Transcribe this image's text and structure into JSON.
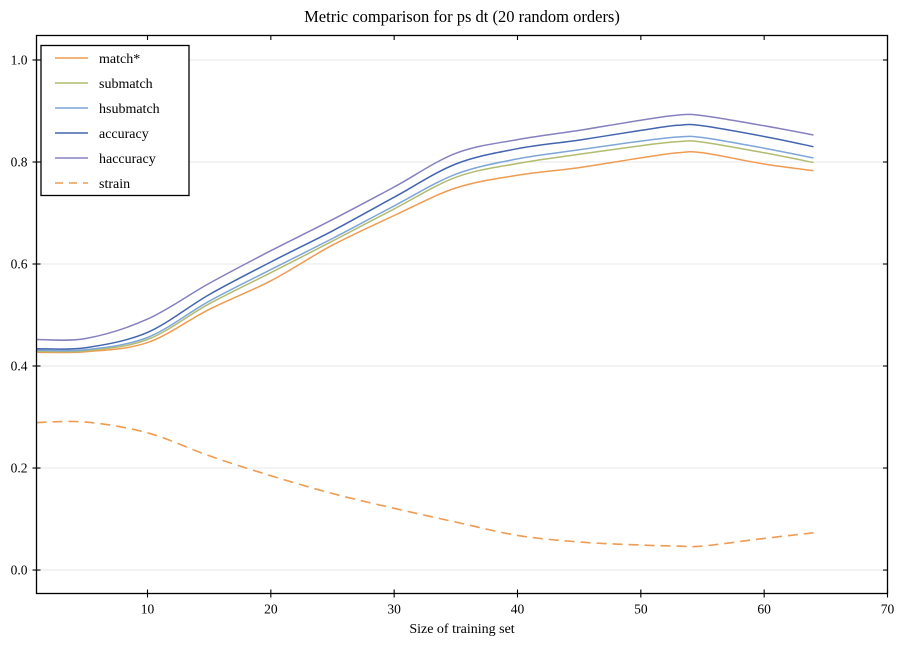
{
  "chart_data": {
    "type": "line",
    "title": "Metric comparison for ps dt (20 random orders)",
    "xlabel": "Size of training set",
    "ylabel": "",
    "xlim": [
      1,
      70
    ],
    "ylim": [
      -0.046,
      1.048
    ],
    "xticks": [
      10,
      20,
      30,
      40,
      50,
      60,
      70
    ],
    "yticks": {
      "values": [
        0.0,
        0.2,
        0.4,
        0.6,
        0.8,
        1.0
      ],
      "labels": [
        "0.0",
        "0.2",
        "0.4",
        "0.6",
        "0.8",
        "1.0"
      ]
    },
    "grid": "horizontal",
    "grid_color": "#e7e7e7",
    "spine_color": "#000000",
    "legend_position": "upper left",
    "x": [
      1,
      5,
      10,
      15,
      20,
      25,
      30,
      35,
      40,
      45,
      50,
      53,
      55,
      60,
      64
    ],
    "series": [
      {
        "name": "match*",
        "color": "#ef9b51",
        "style": "solid",
        "values": [
          0.427,
          0.428,
          0.446,
          0.511,
          0.567,
          0.637,
          0.695,
          0.749,
          0.774,
          0.789,
          0.808,
          0.818,
          0.818,
          0.796,
          0.783
        ]
      },
      {
        "name": "submatch",
        "color": "#b2bc6e",
        "style": "solid",
        "values": [
          0.429,
          0.43,
          0.452,
          0.522,
          0.583,
          0.645,
          0.708,
          0.77,
          0.797,
          0.815,
          0.832,
          0.84,
          0.839,
          0.818,
          0.799
        ]
      },
      {
        "name": "hsubmatch",
        "color": "#7ea6d8",
        "style": "solid",
        "values": [
          0.431,
          0.432,
          0.456,
          0.527,
          0.589,
          0.65,
          0.714,
          0.776,
          0.806,
          0.824,
          0.841,
          0.849,
          0.848,
          0.827,
          0.808
        ]
      },
      {
        "name": "accuracy",
        "color": "#4365af",
        "style": "solid",
        "values": [
          0.434,
          0.436,
          0.466,
          0.54,
          0.604,
          0.665,
          0.731,
          0.796,
          0.826,
          0.843,
          0.862,
          0.872,
          0.871,
          0.85,
          0.83
        ]
      },
      {
        "name": "haccuracy",
        "color": "#8680bf",
        "style": "solid",
        "values": [
          0.452,
          0.454,
          0.492,
          0.562,
          0.626,
          0.687,
          0.751,
          0.817,
          0.844,
          0.862,
          0.882,
          0.892,
          0.891,
          0.871,
          0.853
        ]
      },
      {
        "name": "strain",
        "color": "#ef9b51",
        "style": "dashed",
        "values": [
          0.289,
          0.29,
          0.269,
          0.224,
          0.185,
          0.15,
          0.121,
          0.094,
          0.068,
          0.055,
          0.049,
          0.047,
          0.047,
          0.062,
          0.073
        ]
      }
    ]
  }
}
